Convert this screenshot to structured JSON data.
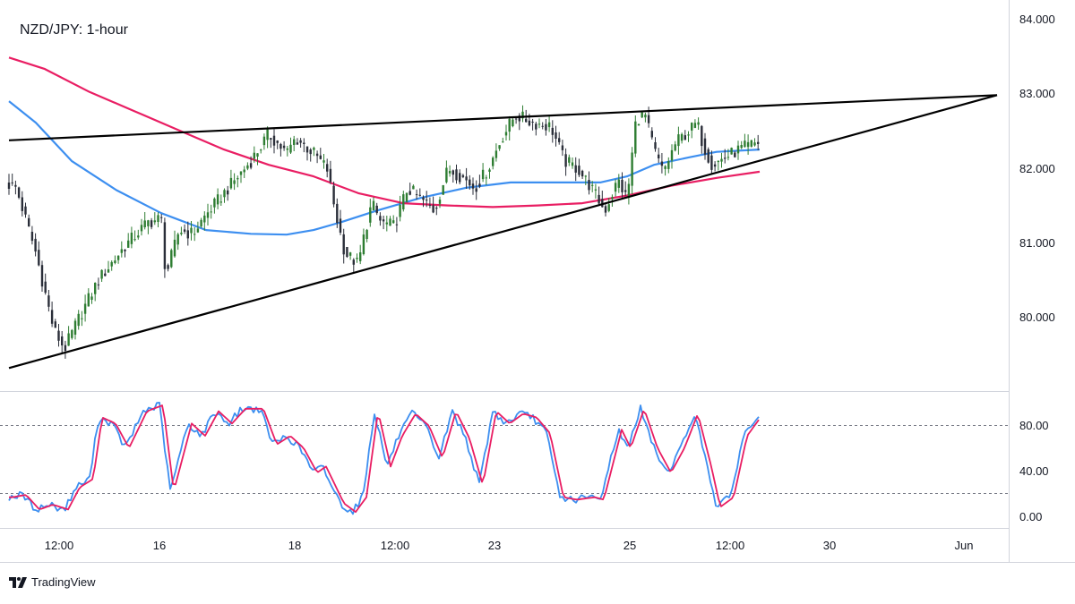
{
  "chart_data": {
    "type": "candlestick",
    "title": "NZD/JPY: 1-hour",
    "price_axis": {
      "ticks": [
        "84.000",
        "83.000",
        "82.000",
        "81.000",
        "80.000"
      ],
      "range": [
        79.1,
        84.2
      ]
    },
    "oscillator_axis": {
      "ticks": [
        "80.00",
        "40.00",
        "0.00"
      ],
      "range": [
        -5,
        105
      ],
      "dashed_levels": [
        80,
        20
      ]
    },
    "time_axis": {
      "ticks": [
        "12:00",
        "16",
        "18",
        "12:00",
        "23",
        "25",
        "12:00",
        "30",
        "Jun"
      ],
      "bars_span": [
        0,
        1100
      ]
    },
    "anchors": [
      [
        0,
        81.85
      ],
      [
        18,
        81.75
      ],
      [
        40,
        80.9
      ],
      [
        60,
        79.9
      ],
      [
        72,
        79.65
      ],
      [
        90,
        80.1
      ],
      [
        110,
        80.55
      ],
      [
        140,
        81.0
      ],
      [
        165,
        81.3
      ],
      [
        180,
        81.35
      ],
      [
        185,
        80.6
      ],
      [
        200,
        81.2
      ],
      [
        215,
        81.15
      ],
      [
        230,
        81.4
      ],
      [
        255,
        81.75
      ],
      [
        280,
        82.1
      ],
      [
        300,
        82.45
      ],
      [
        320,
        82.2
      ],
      [
        330,
        82.4
      ],
      [
        350,
        82.2
      ],
      [
        365,
        82.0
      ],
      [
        375,
        81.4
      ],
      [
        385,
        80.9
      ],
      [
        400,
        80.75
      ],
      [
        405,
        81.05
      ],
      [
        415,
        81.55
      ],
      [
        425,
        81.3
      ],
      [
        440,
        81.25
      ],
      [
        455,
        81.75
      ],
      [
        470,
        81.6
      ],
      [
        485,
        81.45
      ],
      [
        500,
        82.0
      ],
      [
        515,
        81.9
      ],
      [
        530,
        81.75
      ],
      [
        545,
        82.0
      ],
      [
        560,
        82.4
      ],
      [
        575,
        82.7
      ],
      [
        595,
        82.6
      ],
      [
        615,
        82.55
      ],
      [
        630,
        82.1
      ],
      [
        645,
        82.0
      ],
      [
        660,
        81.75
      ],
      [
        675,
        81.45
      ],
      [
        690,
        81.85
      ],
      [
        700,
        81.6
      ],
      [
        710,
        82.65
      ],
      [
        720,
        82.7
      ],
      [
        730,
        82.25
      ],
      [
        740,
        81.95
      ],
      [
        755,
        82.35
      ],
      [
        770,
        82.5
      ],
      [
        778,
        82.6
      ],
      [
        785,
        82.3
      ],
      [
        795,
        82.05
      ],
      [
        810,
        82.15
      ],
      [
        825,
        82.25
      ],
      [
        848,
        82.35
      ]
    ],
    "trendlines": [
      {
        "name": "upper",
        "from": [
          10,
          82.37
        ],
        "to": [
          1113,
          82.96
        ]
      },
      {
        "name": "lower",
        "from": [
          10,
          79.4
        ],
        "to": [
          1113,
          82.96
        ]
      }
    ],
    "moving_averages": [
      {
        "name": "sma-fast",
        "color": "#3d8ff0",
        "points": [
          [
            10,
            82.88
          ],
          [
            40,
            82.6
          ],
          [
            80,
            82.1
          ],
          [
            130,
            81.72
          ],
          [
            180,
            81.42
          ],
          [
            230,
            81.2
          ],
          [
            280,
            81.15
          ],
          [
            320,
            81.14
          ],
          [
            350,
            81.2
          ],
          [
            380,
            81.3
          ],
          [
            420,
            81.45
          ],
          [
            470,
            81.62
          ],
          [
            520,
            81.75
          ],
          [
            570,
            81.82
          ],
          [
            620,
            81.82
          ],
          [
            670,
            81.82
          ],
          [
            700,
            81.9
          ],
          [
            730,
            82.05
          ],
          [
            770,
            82.15
          ],
          [
            800,
            82.22
          ],
          [
            848,
            82.25
          ]
        ]
      },
      {
        "name": "sma-slow",
        "color": "#e91e63",
        "points": [
          [
            10,
            83.45
          ],
          [
            50,
            83.3
          ],
          [
            100,
            83.0
          ],
          [
            150,
            82.75
          ],
          [
            200,
            82.5
          ],
          [
            250,
            82.25
          ],
          [
            300,
            82.05
          ],
          [
            350,
            81.9
          ],
          [
            400,
            81.68
          ],
          [
            450,
            81.55
          ],
          [
            500,
            81.52
          ],
          [
            550,
            81.5
          ],
          [
            600,
            81.52
          ],
          [
            650,
            81.55
          ],
          [
            700,
            81.65
          ],
          [
            750,
            81.78
          ],
          [
            800,
            81.88
          ],
          [
            848,
            81.96
          ]
        ]
      }
    ],
    "oscillator": {
      "k_color": "#3d8ff0",
      "d_color": "#e91e63",
      "anchors": [
        [
          10,
          20
        ],
        [
          25,
          22
        ],
        [
          40,
          10
        ],
        [
          55,
          14
        ],
        [
          72,
          10
        ],
        [
          85,
          28
        ],
        [
          100,
          35
        ],
        [
          110,
          85
        ],
        [
          125,
          80
        ],
        [
          140,
          60
        ],
        [
          160,
          90
        ],
        [
          178,
          95
        ],
        [
          190,
          25
        ],
        [
          210,
          80
        ],
        [
          225,
          70
        ],
        [
          240,
          90
        ],
        [
          255,
          80
        ],
        [
          270,
          92
        ],
        [
          290,
          92
        ],
        [
          305,
          63
        ],
        [
          320,
          70
        ],
        [
          335,
          60
        ],
        [
          350,
          40
        ],
        [
          360,
          45
        ],
        [
          370,
          30
        ],
        [
          380,
          15
        ],
        [
          393,
          8
        ],
        [
          405,
          20
        ],
        [
          418,
          90
        ],
        [
          432,
          45
        ],
        [
          445,
          70
        ],
        [
          460,
          88
        ],
        [
          475,
          78
        ],
        [
          490,
          52
        ],
        [
          505,
          90
        ],
        [
          520,
          68
        ],
        [
          535,
          30
        ],
        [
          550,
          90
        ],
        [
          565,
          80
        ],
        [
          580,
          88
        ],
        [
          595,
          85
        ],
        [
          610,
          72
        ],
        [
          625,
          20
        ],
        [
          640,
          18
        ],
        [
          660,
          20
        ],
        [
          670,
          18
        ],
        [
          690,
          75
        ],
        [
          700,
          60
        ],
        [
          715,
          92
        ],
        [
          730,
          60
        ],
        [
          745,
          40
        ],
        [
          760,
          60
        ],
        [
          775,
          88
        ],
        [
          790,
          45
        ],
        [
          800,
          12
        ],
        [
          815,
          20
        ],
        [
          830,
          70
        ],
        [
          848,
          88
        ]
      ]
    }
  },
  "branding": {
    "name": "TradingView"
  }
}
